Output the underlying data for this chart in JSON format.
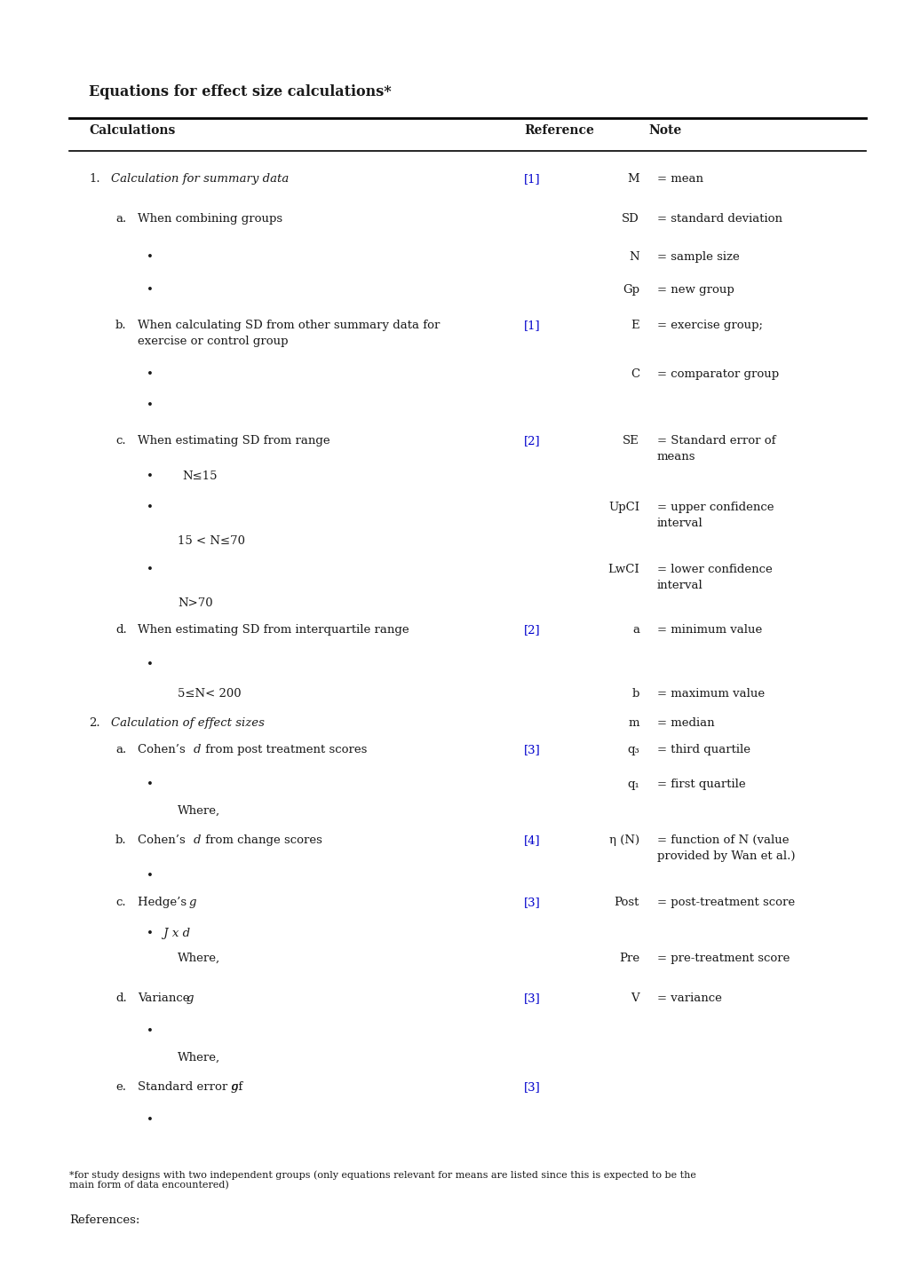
{
  "title": "Equations for effect size calculations*",
  "bg_color": "#ffffff",
  "text_color": "#1a1a1a",
  "blue_color": "#0000cc",
  "fig_w": 10.2,
  "fig_h": 14.43,
  "dpi": 100,
  "header": [
    "Calculations",
    "Reference",
    "Note"
  ],
  "footnote": "*for study designs with two independent groups (only equations relevant for means are listed since this is expected to be the\nmain form of data encountered)",
  "references_label": "References:"
}
